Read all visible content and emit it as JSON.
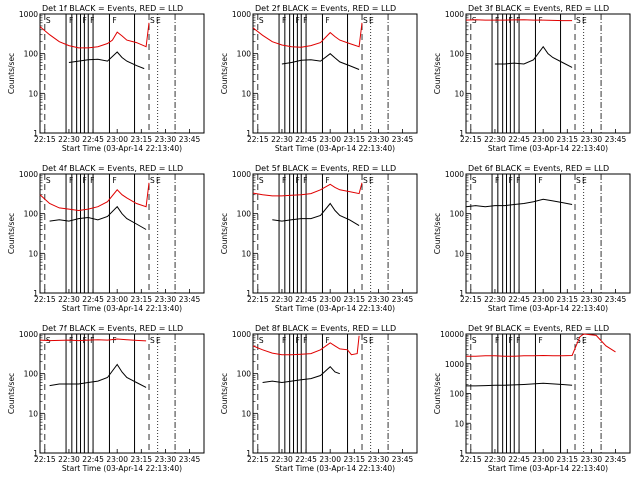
{
  "chart_data": [
    {
      "type": "line",
      "title": "Det 1f BLACK = Events, RED = LLD",
      "xlabel": "Start Time (03-Apr-14 22:13:40)",
      "ylabel": "Counts/sec",
      "xlim": [
        22.2,
        23.9
      ],
      "ylim": [
        1,
        1000
      ],
      "xticks": [
        "22:15",
        "22:30",
        "22:45",
        "23:00",
        "23:15",
        "23:30",
        "23:45"
      ],
      "yticks": [
        "1",
        "10",
        "100",
        "1000"
      ],
      "events": {
        "black": [
          [
            22.5,
            60
          ],
          [
            22.6,
            65
          ],
          [
            22.7,
            70
          ],
          [
            22.8,
            72
          ],
          [
            22.9,
            65
          ],
          [
            23.0,
            110
          ],
          [
            23.05,
            80
          ],
          [
            23.1,
            65
          ],
          [
            23.2,
            50
          ],
          [
            23.28,
            42
          ]
        ],
        "red": [
          [
            22.2,
            480
          ],
          [
            22.3,
            300
          ],
          [
            22.4,
            200
          ],
          [
            22.5,
            160
          ],
          [
            22.6,
            140
          ],
          [
            22.7,
            140
          ],
          [
            22.8,
            150
          ],
          [
            22.9,
            180
          ],
          [
            22.95,
            220
          ],
          [
            23.0,
            350
          ],
          [
            23.05,
            280
          ],
          [
            23.1,
            220
          ],
          [
            23.2,
            190
          ],
          [
            23.3,
            150
          ],
          [
            23.33,
            600
          ]
        ]
      }
    },
    {
      "type": "line",
      "title": "Det 2f BLACK = Events, RED = LLD",
      "xlabel": "Start Time (03-Apr-14 22:13:40)",
      "ylabel": "Counts/sec",
      "xlim": [
        22.2,
        23.9
      ],
      "ylim": [
        1,
        1000
      ],
      "xticks": [
        "22:15",
        "22:30",
        "22:45",
        "23:00",
        "23:15",
        "23:30",
        "23:45"
      ],
      "yticks": [
        "1",
        "10",
        "100",
        "1000"
      ],
      "events": {
        "black": [
          [
            22.5,
            55
          ],
          [
            22.6,
            60
          ],
          [
            22.7,
            68
          ],
          [
            22.8,
            70
          ],
          [
            22.9,
            65
          ],
          [
            23.0,
            100
          ],
          [
            23.05,
            78
          ],
          [
            23.1,
            62
          ],
          [
            23.2,
            50
          ],
          [
            23.3,
            40
          ]
        ],
        "red": [
          [
            22.2,
            450
          ],
          [
            22.3,
            290
          ],
          [
            22.4,
            200
          ],
          [
            22.5,
            165
          ],
          [
            22.6,
            150
          ],
          [
            22.7,
            145
          ],
          [
            22.8,
            160
          ],
          [
            22.9,
            190
          ],
          [
            23.0,
            340
          ],
          [
            23.05,
            270
          ],
          [
            23.1,
            220
          ],
          [
            23.2,
            180
          ],
          [
            23.3,
            150
          ],
          [
            23.33,
            600
          ]
        ]
      }
    },
    {
      "type": "line",
      "title": "Det 3f BLACK = Events, RED = LLD",
      "xlabel": "Start Time (03-Apr-14 22:13:40)",
      "ylabel": "Counts/sec",
      "xlim": [
        22.2,
        23.9
      ],
      "ylim": [
        1,
        1000
      ],
      "xticks": [
        "22:15",
        "22:30",
        "22:45",
        "23:00",
        "23:15",
        "23:30",
        "23:45"
      ],
      "yticks": [
        "1",
        "10",
        "100",
        "1000"
      ],
      "events": {
        "black": [
          [
            22.5,
            55
          ],
          [
            22.6,
            55
          ],
          [
            22.7,
            58
          ],
          [
            22.8,
            55
          ],
          [
            22.9,
            70
          ],
          [
            23.0,
            150
          ],
          [
            23.05,
            100
          ],
          [
            23.1,
            80
          ],
          [
            23.2,
            60
          ],
          [
            23.3,
            45
          ]
        ],
        "red": [
          [
            22.2,
            700
          ],
          [
            22.3,
            720
          ],
          [
            22.4,
            700
          ],
          [
            22.5,
            700
          ],
          [
            22.6,
            700
          ],
          [
            22.7,
            710
          ],
          [
            22.8,
            720
          ],
          [
            22.9,
            700
          ],
          [
            23.0,
            700
          ],
          [
            23.1,
            690
          ],
          [
            23.2,
            680
          ],
          [
            23.3,
            680
          ]
        ]
      }
    },
    {
      "type": "line",
      "title": "Det 4f BLACK = Events, RED = LLD",
      "xlabel": "Start Time (03-Apr-14 22:13:40)",
      "ylabel": "Counts/sec",
      "xlim": [
        22.2,
        23.9
      ],
      "ylim": [
        1,
        1000
      ],
      "xticks": [
        "22:15",
        "22:30",
        "22:45",
        "23:00",
        "23:15",
        "23:30",
        "23:45"
      ],
      "yticks": [
        "1",
        "10",
        "100",
        "1000"
      ],
      "events": {
        "black": [
          [
            22.3,
            65
          ],
          [
            22.4,
            70
          ],
          [
            22.5,
            65
          ],
          [
            22.6,
            75
          ],
          [
            22.7,
            80
          ],
          [
            22.8,
            70
          ],
          [
            22.9,
            85
          ],
          [
            23.0,
            150
          ],
          [
            23.05,
            100
          ],
          [
            23.1,
            75
          ],
          [
            23.2,
            55
          ],
          [
            23.3,
            40
          ]
        ],
        "red": [
          [
            22.2,
            300
          ],
          [
            22.3,
            180
          ],
          [
            22.4,
            140
          ],
          [
            22.5,
            130
          ],
          [
            22.6,
            120
          ],
          [
            22.7,
            130
          ],
          [
            22.8,
            150
          ],
          [
            22.9,
            200
          ],
          [
            23.0,
            400
          ],
          [
            23.05,
            300
          ],
          [
            23.1,
            250
          ],
          [
            23.2,
            180
          ],
          [
            23.3,
            150
          ],
          [
            23.33,
            600
          ]
        ]
      }
    },
    {
      "type": "line",
      "title": "Det 5f BLACK = Events, RED = LLD",
      "xlabel": "Start Time (03-Apr-14 22:13:40)",
      "ylabel": "Counts/sec",
      "xlim": [
        22.2,
        23.9
      ],
      "ylim": [
        1,
        1000
      ],
      "xticks": [
        "22:15",
        "22:30",
        "22:45",
        "23:00",
        "23:15",
        "23:30",
        "23:45"
      ],
      "yticks": [
        "1",
        "10",
        "100",
        "1000"
      ],
      "events": {
        "black": [
          [
            22.4,
            70
          ],
          [
            22.5,
            65
          ],
          [
            22.6,
            70
          ],
          [
            22.7,
            75
          ],
          [
            22.8,
            75
          ],
          [
            22.9,
            90
          ],
          [
            23.0,
            180
          ],
          [
            23.05,
            120
          ],
          [
            23.1,
            90
          ],
          [
            23.2,
            70
          ],
          [
            23.3,
            50
          ]
        ],
        "red": [
          [
            22.2,
            330
          ],
          [
            22.3,
            300
          ],
          [
            22.4,
            280
          ],
          [
            22.5,
            280
          ],
          [
            22.6,
            290
          ],
          [
            22.7,
            300
          ],
          [
            22.8,
            320
          ],
          [
            22.9,
            400
          ],
          [
            23.0,
            550
          ],
          [
            23.05,
            460
          ],
          [
            23.1,
            400
          ],
          [
            23.2,
            360
          ],
          [
            23.3,
            320
          ],
          [
            23.33,
            600
          ]
        ]
      }
    },
    {
      "type": "line",
      "title": "Det 6f BLACK = Events, RED = LLD",
      "xlabel": "Start Time (03-Apr-14 22:13:40)",
      "ylabel": "Counts/sec",
      "xlim": [
        22.2,
        23.9
      ],
      "ylim": [
        1,
        1000
      ],
      "xticks": [
        "22:15",
        "22:30",
        "22:45",
        "23:00",
        "23:15",
        "23:30",
        "23:45"
      ],
      "yticks": [
        "1",
        "10",
        "100",
        "1000"
      ],
      "events": {
        "black": [
          [
            22.2,
            150
          ],
          [
            22.3,
            160
          ],
          [
            22.4,
            150
          ],
          [
            22.5,
            160
          ],
          [
            22.6,
            160
          ],
          [
            22.7,
            170
          ],
          [
            22.8,
            180
          ],
          [
            22.9,
            200
          ],
          [
            23.0,
            230
          ],
          [
            23.1,
            210
          ],
          [
            23.2,
            190
          ],
          [
            23.3,
            170
          ]
        ],
        "red": []
      }
    },
    {
      "type": "line",
      "title": "Det 7f BLACK = Events, RED = LLD",
      "xlabel": "Start Time (03-Apr-14 22:13:40)",
      "ylabel": "Counts/sec",
      "xlim": [
        22.2,
        23.9
      ],
      "ylim": [
        1,
        1000
      ],
      "xticks": [
        "22:15",
        "22:30",
        "22:45",
        "23:00",
        "23:15",
        "23:30",
        "23:45"
      ],
      "yticks": [
        "1",
        "10",
        "100",
        "1000"
      ],
      "events": {
        "black": [
          [
            22.3,
            50
          ],
          [
            22.4,
            55
          ],
          [
            22.5,
            55
          ],
          [
            22.6,
            55
          ],
          [
            22.7,
            60
          ],
          [
            22.8,
            65
          ],
          [
            22.9,
            80
          ],
          [
            23.0,
            170
          ],
          [
            23.05,
            110
          ],
          [
            23.1,
            80
          ],
          [
            23.2,
            60
          ],
          [
            23.3,
            45
          ]
        ],
        "red": [
          [
            22.2,
            700
          ],
          [
            22.3,
            680
          ],
          [
            22.4,
            690
          ],
          [
            22.5,
            700
          ],
          [
            22.6,
            680
          ],
          [
            22.7,
            700
          ],
          [
            22.8,
            720
          ],
          [
            22.9,
            700
          ],
          [
            23.0,
            750
          ],
          [
            23.1,
            720
          ],
          [
            23.2,
            690
          ],
          [
            23.3,
            670
          ]
        ]
      }
    },
    {
      "type": "line",
      "title": "Det 8f BLACK = Events, RED = LLD",
      "xlabel": "Start Time (03-Apr-14 22:13:40)",
      "ylabel": "Counts/sec",
      "xlim": [
        22.2,
        23.9
      ],
      "ylim": [
        1,
        1000
      ],
      "xticks": [
        "22:15",
        "22:30",
        "22:45",
        "23:00",
        "23:15",
        "23:30",
        "23:45"
      ],
      "yticks": [
        "1",
        "10",
        "100",
        "1000"
      ],
      "events": {
        "black": [
          [
            22.3,
            60
          ],
          [
            22.4,
            65
          ],
          [
            22.5,
            60
          ],
          [
            22.6,
            65
          ],
          [
            22.7,
            70
          ],
          [
            22.8,
            75
          ],
          [
            22.9,
            90
          ],
          [
            23.0,
            150
          ],
          [
            23.05,
            110
          ],
          [
            23.1,
            100
          ]
        ],
        "red": [
          [
            22.2,
            500
          ],
          [
            22.3,
            400
          ],
          [
            22.4,
            330
          ],
          [
            22.5,
            300
          ],
          [
            22.6,
            300
          ],
          [
            22.7,
            310
          ],
          [
            22.8,
            320
          ],
          [
            22.9,
            400
          ],
          [
            23.0,
            600
          ],
          [
            23.05,
            500
          ],
          [
            23.1,
            420
          ],
          [
            23.18,
            400
          ],
          [
            23.22,
            300
          ],
          [
            23.28,
            320
          ],
          [
            23.3,
            900
          ]
        ]
      }
    },
    {
      "type": "line",
      "title": "Det 9f BLACK = Events, RED = LLD",
      "xlabel": "Start Time (03-Apr-14 22:13:40)",
      "ylabel": "Counts/sec",
      "xlim": [
        22.2,
        23.9
      ],
      "ylim": [
        1,
        10000
      ],
      "xticks": [
        "22:15",
        "22:30",
        "22:45",
        "23:00",
        "23:15",
        "23:30",
        "23:45"
      ],
      "yticks": [
        "1",
        "10",
        "100",
        "1000",
        "10000"
      ],
      "events": {
        "black": [
          [
            22.2,
            180
          ],
          [
            22.3,
            180
          ],
          [
            22.4,
            185
          ],
          [
            22.5,
            190
          ],
          [
            22.6,
            190
          ],
          [
            22.7,
            195
          ],
          [
            22.8,
            200
          ],
          [
            22.9,
            210
          ],
          [
            23.0,
            220
          ],
          [
            23.1,
            210
          ],
          [
            23.2,
            200
          ],
          [
            23.3,
            190
          ]
        ],
        "red": [
          [
            22.2,
            1800
          ],
          [
            22.3,
            1800
          ],
          [
            22.4,
            1850
          ],
          [
            22.5,
            1850
          ],
          [
            22.6,
            1800
          ],
          [
            22.7,
            1800
          ],
          [
            22.8,
            1850
          ],
          [
            22.9,
            1850
          ],
          [
            23.0,
            1900
          ],
          [
            23.1,
            1850
          ],
          [
            23.2,
            1850
          ],
          [
            23.3,
            1900
          ],
          [
            23.38,
            8000
          ],
          [
            23.42,
            10000
          ],
          [
            23.55,
            9000
          ],
          [
            23.65,
            4000
          ],
          [
            23.75,
            2500
          ]
        ]
      }
    }
  ],
  "markers": {
    "solid_lines_label": "F",
    "dashed_line_label": "S",
    "exit_label": "E",
    "saa_label": "S"
  }
}
